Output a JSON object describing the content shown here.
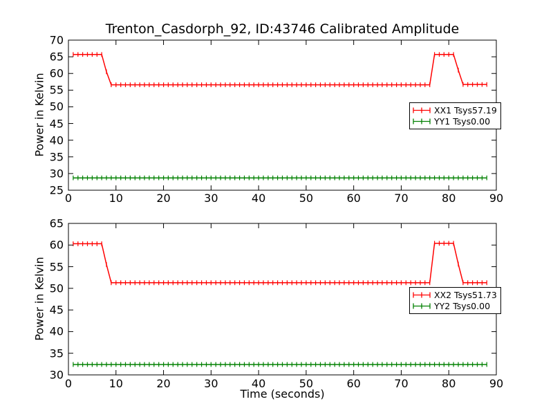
{
  "title": "Trenton_Casdorph_92, ID:43746 Calibrated Amplitude",
  "colors": {
    "background": "#ffffff",
    "axis": "#000000",
    "xx_series": "#ff0000",
    "yy_series": "#008000"
  },
  "chart_data": [
    {
      "type": "line",
      "position": "top",
      "xlabel": "",
      "ylabel": "Power in Kelvin",
      "xlim": [
        0,
        90
      ],
      "ylim": [
        25,
        70
      ],
      "xticks": [
        0,
        10,
        20,
        30,
        40,
        50,
        60,
        70,
        80,
        90
      ],
      "yticks": [
        25,
        30,
        35,
        40,
        45,
        50,
        55,
        60,
        65,
        70
      ],
      "grid": false,
      "legend_position": "right-center",
      "x": [
        1,
        2,
        3,
        4,
        5,
        6,
        7,
        8,
        9,
        10,
        11,
        12,
        13,
        14,
        15,
        16,
        17,
        18,
        19,
        20,
        21,
        22,
        23,
        24,
        25,
        26,
        27,
        28,
        29,
        30,
        31,
        32,
        33,
        34,
        35,
        36,
        37,
        38,
        39,
        40,
        41,
        42,
        43,
        44,
        45,
        46,
        47,
        48,
        49,
        50,
        51,
        52,
        53,
        54,
        55,
        56,
        57,
        58,
        59,
        60,
        61,
        62,
        63,
        64,
        65,
        66,
        67,
        68,
        69,
        70,
        71,
        72,
        73,
        74,
        75,
        76,
        77,
        78,
        79,
        80,
        81,
        82,
        83,
        84,
        85,
        86,
        87,
        88
      ],
      "series": [
        {
          "name": "XX1 Tsys57.19",
          "color": "#ff0000",
          "yerr": 0.7,
          "values": [
            65.7,
            65.7,
            65.7,
            65.7,
            65.7,
            65.7,
            65.7,
            60.5,
            56.6,
            56.6,
            56.6,
            56.6,
            56.6,
            56.6,
            56.6,
            56.6,
            56.6,
            56.6,
            56.6,
            56.6,
            56.6,
            56.6,
            56.6,
            56.6,
            56.6,
            56.6,
            56.6,
            56.6,
            56.6,
            56.6,
            56.6,
            56.6,
            56.6,
            56.6,
            56.6,
            56.6,
            56.6,
            56.6,
            56.6,
            56.6,
            56.6,
            56.6,
            56.6,
            56.6,
            56.6,
            56.6,
            56.6,
            56.6,
            56.6,
            56.6,
            56.6,
            56.6,
            56.6,
            56.6,
            56.6,
            56.6,
            56.6,
            56.6,
            56.6,
            56.6,
            56.6,
            56.6,
            56.6,
            56.6,
            56.6,
            56.6,
            56.6,
            56.6,
            56.6,
            56.6,
            56.6,
            56.6,
            56.6,
            56.6,
            56.6,
            56.6,
            65.7,
            65.7,
            65.7,
            65.7,
            65.7,
            61.0,
            56.7,
            56.7,
            56.7,
            56.7,
            56.7,
            56.7
          ]
        },
        {
          "name": "YY1 Tsys0.00",
          "color": "#008000",
          "yerr": 0.7,
          "values": [
            28.7,
            28.7,
            28.7,
            28.7,
            28.7,
            28.7,
            28.7,
            28.7,
            28.7,
            28.7,
            28.7,
            28.7,
            28.7,
            28.7,
            28.7,
            28.7,
            28.7,
            28.7,
            28.7,
            28.7,
            28.7,
            28.7,
            28.7,
            28.7,
            28.7,
            28.7,
            28.7,
            28.7,
            28.7,
            28.7,
            28.7,
            28.7,
            28.7,
            28.7,
            28.7,
            28.7,
            28.7,
            28.7,
            28.7,
            28.7,
            28.7,
            28.7,
            28.7,
            28.7,
            28.7,
            28.7,
            28.7,
            28.7,
            28.7,
            28.7,
            28.7,
            28.7,
            28.7,
            28.7,
            28.7,
            28.7,
            28.7,
            28.7,
            28.7,
            28.7,
            28.7,
            28.7,
            28.7,
            28.7,
            28.7,
            28.7,
            28.7,
            28.7,
            28.7,
            28.7,
            28.7,
            28.7,
            28.7,
            28.7,
            28.7,
            28.7,
            28.7,
            28.7,
            28.7,
            28.7,
            28.7,
            28.7,
            28.7,
            28.7,
            28.7,
            28.7,
            28.7,
            28.7
          ]
        }
      ],
      "legend": {
        "entries": [
          {
            "label": "XX1 Tsys57.19",
            "color": "#ff0000"
          },
          {
            "label": "YY1 Tsys0.00",
            "color": "#008000"
          }
        ]
      }
    },
    {
      "type": "line",
      "position": "bottom",
      "xlabel": "Time (seconds)",
      "ylabel": "Power in Kelvin",
      "xlim": [
        0,
        90
      ],
      "ylim": [
        30,
        65
      ],
      "xticks": [
        0,
        10,
        20,
        30,
        40,
        50,
        60,
        70,
        80,
        90
      ],
      "yticks": [
        30,
        35,
        40,
        45,
        50,
        55,
        60,
        65
      ],
      "grid": false,
      "legend_position": "right-center",
      "x": [
        1,
        2,
        3,
        4,
        5,
        6,
        7,
        8,
        9,
        10,
        11,
        12,
        13,
        14,
        15,
        16,
        17,
        18,
        19,
        20,
        21,
        22,
        23,
        24,
        25,
        26,
        27,
        28,
        29,
        30,
        31,
        32,
        33,
        34,
        35,
        36,
        37,
        38,
        39,
        40,
        41,
        42,
        43,
        44,
        45,
        46,
        47,
        48,
        49,
        50,
        51,
        52,
        53,
        54,
        55,
        56,
        57,
        58,
        59,
        60,
        61,
        62,
        63,
        64,
        65,
        66,
        67,
        68,
        69,
        70,
        71,
        72,
        73,
        74,
        75,
        76,
        77,
        78,
        79,
        80,
        81,
        82,
        83,
        84,
        85,
        86,
        87,
        88
      ],
      "series": [
        {
          "name": "XX2 Tsys51.73",
          "color": "#ff0000",
          "yerr": 0.55,
          "values": [
            60.3,
            60.3,
            60.3,
            60.3,
            60.3,
            60.3,
            60.3,
            55.5,
            51.3,
            51.3,
            51.3,
            51.3,
            51.3,
            51.3,
            51.3,
            51.3,
            51.3,
            51.3,
            51.3,
            51.3,
            51.3,
            51.3,
            51.3,
            51.3,
            51.3,
            51.3,
            51.3,
            51.3,
            51.3,
            51.3,
            51.3,
            51.3,
            51.3,
            51.3,
            51.3,
            51.3,
            51.3,
            51.3,
            51.3,
            51.3,
            51.3,
            51.3,
            51.3,
            51.3,
            51.3,
            51.3,
            51.3,
            51.3,
            51.3,
            51.3,
            51.3,
            51.3,
            51.3,
            51.3,
            51.3,
            51.3,
            51.3,
            51.3,
            51.3,
            51.3,
            51.3,
            51.3,
            51.3,
            51.3,
            51.3,
            51.3,
            51.3,
            51.3,
            51.3,
            51.3,
            51.3,
            51.3,
            51.3,
            51.3,
            51.3,
            51.3,
            60.4,
            60.4,
            60.4,
            60.4,
            60.4,
            55.6,
            51.3,
            51.3,
            51.3,
            51.3,
            51.3,
            51.3
          ]
        },
        {
          "name": "YY2 Tsys0.00",
          "color": "#008000",
          "yerr": 0.55,
          "values": [
            32.4,
            32.4,
            32.4,
            32.4,
            32.4,
            32.4,
            32.4,
            32.4,
            32.4,
            32.4,
            32.4,
            32.4,
            32.4,
            32.4,
            32.4,
            32.4,
            32.4,
            32.4,
            32.4,
            32.4,
            32.4,
            32.4,
            32.4,
            32.4,
            32.4,
            32.4,
            32.4,
            32.4,
            32.4,
            32.4,
            32.4,
            32.4,
            32.4,
            32.4,
            32.4,
            32.4,
            32.4,
            32.4,
            32.4,
            32.4,
            32.4,
            32.4,
            32.4,
            32.4,
            32.4,
            32.4,
            32.4,
            32.4,
            32.4,
            32.4,
            32.4,
            32.4,
            32.4,
            32.4,
            32.4,
            32.4,
            32.4,
            32.4,
            32.4,
            32.4,
            32.4,
            32.4,
            32.4,
            32.4,
            32.4,
            32.4,
            32.4,
            32.4,
            32.4,
            32.4,
            32.4,
            32.4,
            32.4,
            32.4,
            32.4,
            32.4,
            32.4,
            32.4,
            32.4,
            32.4,
            32.4,
            32.4,
            32.4,
            32.4,
            32.4,
            32.4,
            32.4,
            32.4
          ]
        }
      ],
      "legend": {
        "entries": [
          {
            "label": "XX2 Tsys51.73",
            "color": "#ff0000"
          },
          {
            "label": "YY2 Tsys0.00",
            "color": "#008000"
          }
        ]
      }
    }
  ]
}
